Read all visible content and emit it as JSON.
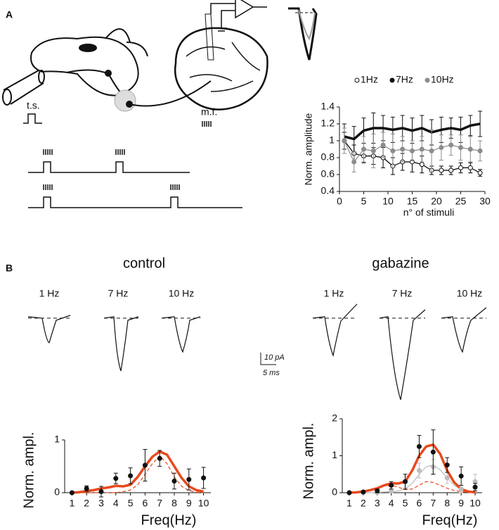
{
  "labels": {
    "panel_a": "A",
    "panel_b": "B",
    "ts": "t.s.",
    "mf": "m.f.",
    "control": "control",
    "gabazine": "gabazine",
    "control_freqs": [
      "1 Hz",
      "7 Hz",
      "10 Hz"
    ],
    "gabazine_freqs": [
      "1 Hz",
      "7 Hz",
      "10 Hz"
    ],
    "scale_current": "10 pA",
    "scale_time": "5 ms"
  },
  "chart_data": [
    {
      "type": "line",
      "x_label": "n° of stimuli",
      "y_label": "Norm. amplitude",
      "x": [
        1,
        3,
        5,
        7,
        9,
        11,
        13,
        15,
        17,
        19,
        21,
        23,
        25,
        27,
        29
      ],
      "series": [
        {
          "name": "1Hz",
          "color": "#000000",
          "style": "thin",
          "marker": "open",
          "values": [
            1.0,
            0.85,
            0.82,
            0.82,
            0.8,
            0.7,
            0.75,
            0.75,
            0.72,
            0.65,
            0.65,
            0.65,
            0.68,
            0.68,
            0.62
          ],
          "errors": [
            0.1,
            0.1,
            0.08,
            0.1,
            0.12,
            0.1,
            0.1,
            0.12,
            0.1,
            0.05,
            0.05,
            0.05,
            0.06,
            0.06,
            0.04
          ]
        },
        {
          "name": "7Hz",
          "color": "#111111",
          "style": "thick",
          "marker": "none",
          "values": [
            1.05,
            1.02,
            1.12,
            1.15,
            1.15,
            1.13,
            1.15,
            1.12,
            1.15,
            1.1,
            1.13,
            1.15,
            1.13,
            1.18,
            1.2
          ],
          "errors": [
            0.15,
            0.15,
            0.15,
            0.18,
            0.15,
            0.15,
            0.15,
            0.15,
            0.15,
            0.15,
            0.15,
            0.12,
            0.15,
            0.12,
            0.15
          ]
        },
        {
          "name": "10Hz",
          "color": "#8c8c8c",
          "style": "thin",
          "marker": "filled",
          "values": [
            1.0,
            0.75,
            0.9,
            0.88,
            0.95,
            0.88,
            0.9,
            0.88,
            0.9,
            0.88,
            0.92,
            0.95,
            0.92,
            0.9,
            0.88
          ],
          "errors": [
            0.15,
            0.12,
            0.15,
            0.2,
            0.15,
            0.2,
            0.15,
            0.12,
            0.15,
            0.25,
            0.15,
            0.12,
            0.15,
            0.15,
            0.12
          ]
        }
      ],
      "xlim": [
        0,
        30
      ],
      "xticks": [
        0,
        5,
        10,
        15,
        20,
        25,
        30
      ],
      "ylim": [
        0.4,
        1.4
      ],
      "yticks": [
        0.4,
        0.6,
        0.8,
        1,
        1.2,
        1.4
      ]
    },
    {
      "type": "fit",
      "x_label": "Freq(Hz)",
      "y_label": "Norm. ampl.",
      "series": [
        {
          "color": "#e8491d",
          "style": "thick",
          "x": [
            1,
            1.5,
            2,
            2.5,
            3,
            3.5,
            4,
            4.5,
            5,
            5.5,
            6,
            6.5,
            7,
            7.5,
            8,
            8.5,
            9,
            9.5,
            10
          ],
          "values": [
            0,
            0.01,
            0.03,
            0.05,
            0.08,
            0.1,
            0.13,
            0.12,
            0.15,
            0.3,
            0.5,
            0.68,
            0.78,
            0.72,
            0.5,
            0.28,
            0.12,
            0.05,
            0.02
          ]
        },
        {
          "color": "#e8491d",
          "style": "dashed",
          "x": [
            1,
            1.5,
            2,
            2.5,
            3,
            3.5,
            4,
            4.5,
            5,
            5.5,
            6,
            6.5,
            7,
            7.5,
            8,
            8.5,
            9,
            9.5,
            10
          ],
          "values": [
            0,
            0,
            0,
            0,
            0,
            0,
            0,
            0.02,
            0.05,
            0.15,
            0.35,
            0.55,
            0.7,
            0.55,
            0.3,
            0.12,
            0.04,
            0.01,
            0
          ]
        },
        {
          "color": "#111111",
          "style": "points",
          "x": [
            1,
            2,
            3,
            4,
            5,
            6,
            7,
            8,
            9,
            10
          ],
          "values": [
            0,
            0.08,
            0.02,
            0.27,
            0.32,
            0.52,
            0.65,
            0.22,
            0.25,
            0.28
          ],
          "errors": [
            0.02,
            0.05,
            0.1,
            0.1,
            0.15,
            0.3,
            0.15,
            0.15,
            0.2,
            0.2
          ]
        }
      ],
      "xlim": [
        0.5,
        10.5
      ],
      "xticks": [
        1,
        2,
        3,
        4,
        5,
        6,
        7,
        8,
        9,
        10
      ],
      "ylim": [
        0,
        1
      ],
      "yticks": [
        0,
        1
      ]
    },
    {
      "type": "fit",
      "x_label": "Freq(Hz)",
      "y_label": "Norm. ampl.",
      "series": [
        {
          "color": "#bdbdbd",
          "style": "thin",
          "x": [
            1,
            1.5,
            2,
            2.5,
            3,
            3.5,
            4,
            4.5,
            5,
            5.5,
            6,
            6.5,
            7,
            7.5,
            8,
            8.5,
            9,
            9.5,
            10
          ],
          "values": [
            0,
            0,
            0,
            0,
            0.01,
            0.02,
            0.03,
            0.05,
            0.1,
            0.25,
            0.5,
            0.7,
            0.75,
            0.62,
            0.4,
            0.2,
            0.08,
            0.03,
            0.01
          ]
        },
        {
          "color": "#e8491d",
          "style": "dashed",
          "x": [
            1,
            1.5,
            2,
            2.5,
            3,
            3.5,
            4,
            4.5,
            5,
            5.5,
            6,
            6.5,
            7,
            7.5,
            8,
            8.5,
            9,
            9.5,
            10
          ],
          "values": [
            0,
            0.01,
            0.03,
            0.07,
            0.12,
            0.18,
            0.2,
            0.15,
            0.08,
            0.1,
            0.2,
            0.3,
            0.28,
            0.2,
            0.12,
            0.06,
            0.03,
            0.01,
            0
          ]
        },
        {
          "color": "#e8491d",
          "style": "thick",
          "x": [
            1,
            1.5,
            2,
            2.5,
            3,
            3.5,
            4,
            4.5,
            5,
            5.5,
            6,
            6.5,
            7,
            7.5,
            8,
            8.5,
            9,
            9.5,
            10
          ],
          "values": [
            0,
            0.01,
            0.03,
            0.07,
            0.12,
            0.2,
            0.25,
            0.25,
            0.3,
            0.6,
            1.0,
            1.25,
            1.3,
            1.05,
            0.6,
            0.28,
            0.1,
            0.03,
            0.01
          ]
        },
        {
          "color": "#bdbdbd",
          "style": "points",
          "x": [
            1,
            2,
            3,
            4,
            5,
            6,
            7,
            8,
            9,
            10
          ],
          "values": [
            0,
            0,
            0,
            0.05,
            0.3,
            0.6,
            0.7,
            0.4,
            0.1,
            0.3
          ],
          "errors": [
            0.02,
            0.02,
            0.03,
            0.05,
            0.15,
            0.2,
            0.2,
            0.15,
            0.1,
            0.2
          ]
        },
        {
          "color": "#111111",
          "style": "points",
          "x": [
            1,
            2,
            3,
            4,
            5,
            6,
            7,
            8,
            9,
            10
          ],
          "values": [
            0,
            0.02,
            0.05,
            0.2,
            0.3,
            1.25,
            1.1,
            0.75,
            0.45,
            0.15
          ],
          "errors": [
            0.02,
            0.03,
            0.05,
            0.1,
            0.2,
            0.3,
            0.6,
            0.2,
            0.25,
            0.1
          ]
        }
      ],
      "xlim": [
        0.5,
        10.5
      ],
      "xticks": [
        1,
        2,
        3,
        4,
        5,
        6,
        7,
        8,
        9,
        10
      ],
      "ylim": [
        0,
        2
      ],
      "yticks": [
        0,
        1,
        2
      ]
    }
  ]
}
